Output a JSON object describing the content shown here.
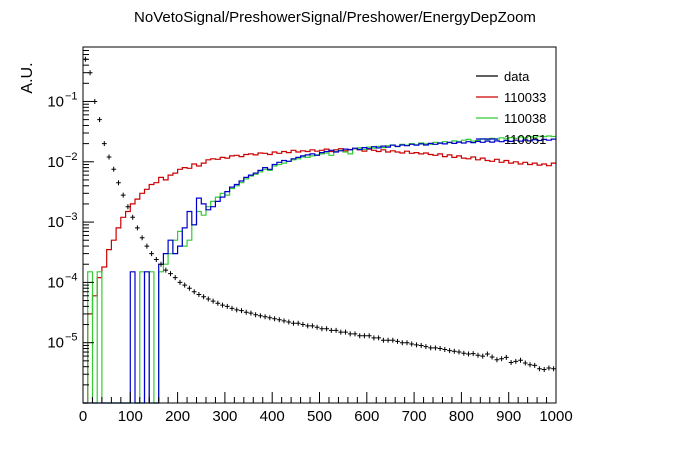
{
  "chart_data": {
    "type": "line",
    "title": "NoVetoSignal/PreshowerSignal/Preshower/EnergyDepZoom",
    "ylabel": "A.U.",
    "xlabel": "",
    "xlim": [
      0,
      1000
    ],
    "ylim": [
      1e-06,
      0.8
    ],
    "yscale": "log",
    "grid": false,
    "legend_position": "top-right",
    "x_ticks": [
      "0",
      "100",
      "200",
      "300",
      "400",
      "500",
      "600",
      "700",
      "800",
      "900",
      "1000"
    ],
    "y_ticks": [
      {
        "base": "10",
        "exp": "−5",
        "value": 1e-05
      },
      {
        "base": "10",
        "exp": "−4",
        "value": 0.0001
      },
      {
        "base": "10",
        "exp": "−3",
        "value": 0.001
      },
      {
        "base": "10",
        "exp": "−2",
        "value": 0.01
      },
      {
        "base": "10",
        "exp": "−1",
        "value": 0.1
      }
    ],
    "bin_width": 10,
    "series": [
      {
        "name": "data",
        "color": "#000000",
        "style": "points",
        "x": [
          5,
          15,
          25,
          35,
          45,
          55,
          65,
          75,
          85,
          95,
          105,
          115,
          125,
          135,
          145,
          155,
          165,
          175,
          185,
          195,
          205,
          215,
          225,
          235,
          245,
          255,
          265,
          275,
          285,
          295,
          305,
          315,
          325,
          335,
          345,
          355,
          365,
          375,
          385,
          395,
          405,
          415,
          425,
          435,
          445,
          455,
          465,
          475,
          485,
          495,
          505,
          515,
          525,
          535,
          545,
          555,
          565,
          575,
          585,
          595,
          605,
          615,
          625,
          635,
          645,
          655,
          665,
          675,
          685,
          695,
          705,
          715,
          725,
          735,
          745,
          755,
          765,
          775,
          785,
          795,
          805,
          815,
          825,
          835,
          845,
          855,
          865,
          875,
          885,
          895,
          905,
          915,
          925,
          935,
          945,
          955,
          965,
          975,
          985,
          995
        ],
        "y": [
          0.5,
          0.3,
          0.1,
          0.05,
          0.02,
          0.012,
          0.0075,
          0.0045,
          0.0028,
          0.0018,
          0.0012,
          0.0008,
          0.00055,
          0.0004,
          0.0003,
          0.00024,
          0.0002,
          0.00016,
          0.00014,
          0.00012,
          0.0001,
          9e-05,
          8e-05,
          7e-05,
          6.3e-05,
          5.8e-05,
          5.3e-05,
          4.9e-05,
          4.5e-05,
          4.2e-05,
          4e-05,
          3.7e-05,
          3.5e-05,
          3.4e-05,
          3.2e-05,
          3.1e-05,
          2.9e-05,
          2.8e-05,
          2.7e-05,
          2.6e-05,
          2.5e-05,
          2.4e-05,
          2.3e-05,
          2.2e-05,
          2.1e-05,
          2.1e-05,
          2e-05,
          1.9e-05,
          1.9e-05,
          1.8e-05,
          1.7e-05,
          1.7e-05,
          1.6e-05,
          1.6e-05,
          1.5e-05,
          1.5e-05,
          1.4e-05,
          1.4e-05,
          1.3e-05,
          1.3e-05,
          1.3e-05,
          1.2e-05,
          1.2e-05,
          1.1e-05,
          1.1e-05,
          1.1e-05,
          1.05e-05,
          1e-05,
          1e-05,
          9.5e-06,
          9.2e-06,
          9e-06,
          8.6e-06,
          8.2e-06,
          8.2e-06,
          8e-06,
          7.7e-06,
          7.4e-06,
          7.2e-06,
          7e-06,
          6.7e-06,
          6.5e-06,
          6.6e-06,
          6.2e-06,
          6e-06,
          6.5e-06,
          5.8e-06,
          5.2e-06,
          5.4e-06,
          5.7e-06,
          4.7e-06,
          4.9e-06,
          5.1e-06,
          4.6e-06,
          4.3e-06,
          4.2e-06,
          3.7e-06,
          3.6e-06,
          3.8e-06,
          3.7e-06
        ]
      },
      {
        "name": "110033",
        "color": "#cc0000",
        "style": "step",
        "x": [
          5,
          15,
          25,
          35,
          45,
          55,
          65,
          75,
          85,
          95,
          105,
          115,
          125,
          135,
          145,
          155,
          165,
          175,
          185,
          195,
          205,
          215,
          225,
          235,
          245,
          255,
          265,
          275,
          285,
          295,
          305,
          315,
          325,
          335,
          345,
          355,
          365,
          375,
          385,
          395,
          405,
          415,
          425,
          435,
          445,
          455,
          465,
          475,
          485,
          495,
          505,
          515,
          525,
          535,
          545,
          555,
          565,
          575,
          585,
          595,
          605,
          615,
          625,
          635,
          645,
          655,
          665,
          675,
          685,
          695,
          705,
          715,
          725,
          735,
          745,
          755,
          765,
          775,
          785,
          795,
          805,
          815,
          825,
          835,
          845,
          855,
          865,
          875,
          885,
          895,
          905,
          915,
          925,
          935,
          945,
          955,
          965,
          975,
          985,
          995
        ],
        "y": [
          0,
          3e-05,
          6e-05,
          0.00012,
          0.00018,
          0.00035,
          0.0005,
          0.0008,
          0.0012,
          0.0015,
          0.002,
          0.0024,
          0.003,
          0.0035,
          0.0042,
          0.0045,
          0.0055,
          0.005,
          0.006,
          0.0065,
          0.0075,
          0.008,
          0.0078,
          0.0092,
          0.0085,
          0.0095,
          0.0108,
          0.0112,
          0.011,
          0.0118,
          0.0115,
          0.0125,
          0.0128,
          0.0122,
          0.0132,
          0.0135,
          0.013,
          0.014,
          0.0138,
          0.0132,
          0.0145,
          0.0138,
          0.0148,
          0.0142,
          0.0155,
          0.0145,
          0.0152,
          0.0148,
          0.0158,
          0.015,
          0.0155,
          0.0162,
          0.0148,
          0.0158,
          0.0165,
          0.0152,
          0.016,
          0.0165,
          0.0158,
          0.015,
          0.0162,
          0.0155,
          0.0148,
          0.0158,
          0.0145,
          0.0152,
          0.0145,
          0.014,
          0.015,
          0.0138,
          0.0142,
          0.0135,
          0.014,
          0.0132,
          0.0128,
          0.0135,
          0.0122,
          0.013,
          0.0118,
          0.0125,
          0.0115,
          0.0112,
          0.012,
          0.0108,
          0.0115,
          0.0105,
          0.0102,
          0.011,
          0.0098,
          0.0105,
          0.0095,
          0.01,
          0.0092,
          0.0098,
          0.009,
          0.0095,
          0.0088,
          0.0092,
          0.0086,
          0.0095
        ]
      },
      {
        "name": "110038",
        "color": "#33cc33",
        "style": "step",
        "x": [
          5,
          15,
          25,
          35,
          45,
          55,
          65,
          75,
          85,
          95,
          105,
          115,
          125,
          135,
          145,
          155,
          165,
          175,
          185,
          195,
          205,
          215,
          225,
          235,
          245,
          255,
          265,
          275,
          285,
          295,
          305,
          315,
          325,
          335,
          345,
          355,
          365,
          375,
          385,
          395,
          405,
          415,
          425,
          435,
          445,
          455,
          465,
          475,
          485,
          495,
          505,
          515,
          525,
          535,
          545,
          555,
          565,
          575,
          585,
          595,
          605,
          615,
          625,
          635,
          645,
          655,
          665,
          675,
          685,
          695,
          705,
          715,
          725,
          735,
          745,
          755,
          765,
          775,
          785,
          795,
          805,
          815,
          825,
          835,
          845,
          855,
          865,
          875,
          885,
          895,
          905,
          915,
          925,
          935,
          945,
          955,
          965,
          975,
          985,
          995
        ],
        "y": [
          0,
          0.00015,
          0,
          0.00015,
          0,
          0,
          0,
          0,
          0,
          0,
          0,
          0,
          0.00015,
          0,
          0.00015,
          0,
          0.00015,
          0.0002,
          0.0003,
          0.0005,
          0.0007,
          0.0004,
          0.0005,
          0.0009,
          0.0015,
          0.0013,
          0.0018,
          0.0022,
          0.0026,
          0.003,
          0.0028,
          0.0036,
          0.004,
          0.0045,
          0.0052,
          0.0058,
          0.0062,
          0.0068,
          0.0075,
          0.0072,
          0.0085,
          0.009,
          0.0095,
          0.0102,
          0.0108,
          0.0112,
          0.012,
          0.0118,
          0.0125,
          0.013,
          0.0135,
          0.014,
          0.0128,
          0.0148,
          0.0155,
          0.0145,
          0.0135,
          0.0165,
          0.017,
          0.016,
          0.0175,
          0.0168,
          0.018,
          0.0172,
          0.0185,
          0.019,
          0.0178,
          0.0195,
          0.0188,
          0.02,
          0.0192,
          0.0205,
          0.0198,
          0.0195,
          0.021,
          0.0202,
          0.0215,
          0.0208,
          0.0222,
          0.0215,
          0.0228,
          0.0235,
          0.022,
          0.0225,
          0.024,
          0.0232,
          0.0245,
          0.0238,
          0.025,
          0.024,
          0.0252,
          0.0245,
          0.0258,
          0.0248,
          0.0262,
          0.0255,
          0.0265,
          0.026,
          0.0268,
          0.0262
        ]
      },
      {
        "name": "110051",
        "color": "#0000cc",
        "style": "step",
        "x": [
          5,
          15,
          25,
          35,
          45,
          55,
          65,
          75,
          85,
          95,
          105,
          115,
          125,
          135,
          145,
          155,
          165,
          175,
          185,
          195,
          205,
          215,
          225,
          235,
          245,
          255,
          265,
          275,
          285,
          295,
          305,
          315,
          325,
          335,
          345,
          355,
          365,
          375,
          385,
          395,
          405,
          415,
          425,
          435,
          445,
          455,
          465,
          475,
          485,
          495,
          505,
          515,
          525,
          535,
          545,
          555,
          565,
          575,
          585,
          595,
          605,
          615,
          625,
          635,
          645,
          655,
          665,
          675,
          685,
          695,
          705,
          715,
          725,
          735,
          745,
          755,
          765,
          775,
          785,
          795,
          805,
          815,
          825,
          835,
          845,
          855,
          865,
          875,
          885,
          895,
          905,
          915,
          925,
          935,
          945,
          955,
          965,
          975,
          985,
          995
        ],
        "y": [
          0,
          0,
          0,
          0,
          0,
          0,
          0,
          0,
          0,
          0,
          0.00015,
          0,
          0,
          0.00015,
          0,
          0,
          0.0002,
          0.0003,
          0.0005,
          0.0003,
          0.0004,
          0.0008,
          0.0015,
          0.0009,
          0.0025,
          0.002,
          0.0016,
          0.0018,
          0.0022,
          0.0026,
          0.0032,
          0.0038,
          0.0042,
          0.0048,
          0.0055,
          0.006,
          0.0065,
          0.0072,
          0.008,
          0.0075,
          0.009,
          0.0098,
          0.0105,
          0.0102,
          0.0112,
          0.0118,
          0.0125,
          0.013,
          0.0135,
          0.0128,
          0.0142,
          0.0148,
          0.0155,
          0.0145,
          0.0152,
          0.0162,
          0.0158,
          0.0168,
          0.016,
          0.0172,
          0.0165,
          0.0178,
          0.017,
          0.0182,
          0.0175,
          0.0188,
          0.018,
          0.019,
          0.0185,
          0.0195,
          0.0188,
          0.0198,
          0.019,
          0.0202,
          0.0195,
          0.0205,
          0.0198,
          0.021,
          0.0202,
          0.0212,
          0.0205,
          0.0215,
          0.0208,
          0.0218,
          0.021,
          0.022,
          0.0212,
          0.0222,
          0.0215,
          0.0225,
          0.0218,
          0.0228,
          0.022,
          0.023,
          0.0222,
          0.0232,
          0.0225,
          0.0235,
          0.0228,
          0.0238
        ]
      }
    ]
  }
}
